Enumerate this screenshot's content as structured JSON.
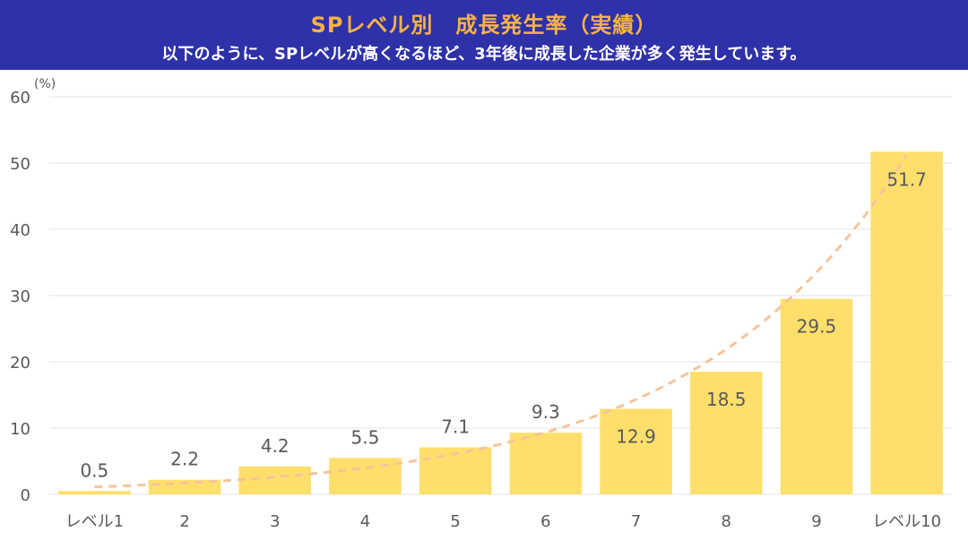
{
  "header": {
    "title": "SPレベル別　成長発生率（実績）",
    "subtitle": "以下のように、SPレベルが高くなるほど、3年後に成長した企業が多く発生しています。"
  },
  "colors": {
    "banner": "#2e31a8",
    "title": "#f5b24a",
    "bar": "#ffdf6b",
    "trendline": "#f6c49b",
    "text": "#595959"
  },
  "chart_data": {
    "type": "bar",
    "categories": [
      "レベル1",
      "2",
      "3",
      "4",
      "5",
      "6",
      "7",
      "8",
      "9",
      "レベル10"
    ],
    "values": [
      0.5,
      2.2,
      4.2,
      5.5,
      7.1,
      9.3,
      12.9,
      18.5,
      29.5,
      51.7
    ],
    "data_labels": [
      "0.5",
      "2.2",
      "4.2",
      "5.5",
      "7.1",
      "9.3",
      "12.9",
      "18.5",
      "29.5",
      "51.7"
    ],
    "y_ticks": [
      "0",
      "10",
      "20",
      "30",
      "40",
      "50",
      "60"
    ],
    "ylim": [
      0,
      60
    ],
    "ylabel": "(%)",
    "grid": true,
    "trendline": "exponential (dashed)"
  }
}
